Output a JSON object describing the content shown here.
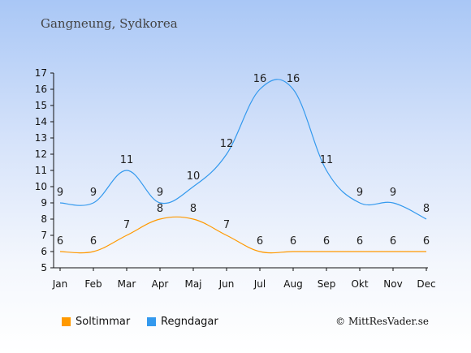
{
  "title": "Gangneung, Sydkorea",
  "credit": "© MittResVader.se",
  "colors": {
    "sun": "#ff9900",
    "rain": "#3399ee",
    "axis": "#111111"
  },
  "chart_data": {
    "type": "line",
    "categories": [
      "Jan",
      "Feb",
      "Mar",
      "Apr",
      "Maj",
      "Jun",
      "Jul",
      "Aug",
      "Sep",
      "Okt",
      "Nov",
      "Dec"
    ],
    "ylim": [
      5,
      17
    ],
    "yticks": [
      "5",
      "6",
      "7",
      "8",
      "9",
      "10",
      "11",
      "12",
      "13",
      "14",
      "15",
      "16",
      "17"
    ],
    "grid": false,
    "legend_position": "bottom-left",
    "series": [
      {
        "name": "Soltimmar",
        "color": "#ff9900",
        "values": [
          6,
          6,
          7,
          8,
          8,
          7,
          6,
          6,
          6,
          6,
          6,
          6
        ]
      },
      {
        "name": "Regndagar",
        "color": "#3399ee",
        "values": [
          9,
          9,
          11,
          9,
          10,
          12,
          16,
          16,
          11,
          9,
          9,
          8
        ]
      }
    ]
  }
}
